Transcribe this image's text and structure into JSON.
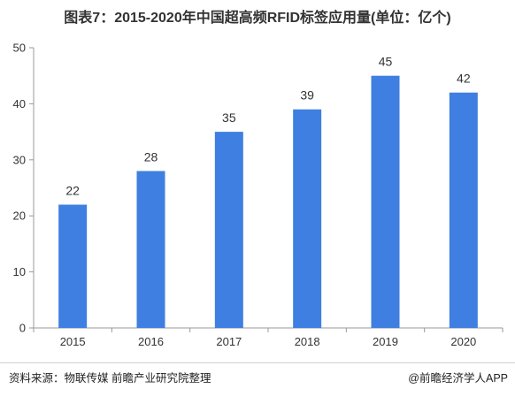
{
  "title": "图表7：2015-2020年中国超高频RFID标签应用量(单位：亿个)",
  "footer": {
    "source": "资料来源：物联传媒 前瞻产业研究院整理",
    "brand": "@前瞻经济学人APP"
  },
  "colors": {
    "bar": "#3f7fe1",
    "axis": "#999999",
    "text": "#333333"
  },
  "chart_data": {
    "type": "bar",
    "categories": [
      "2015",
      "2016",
      "2017",
      "2018",
      "2019",
      "2020"
    ],
    "values": [
      22,
      28,
      35,
      39,
      45,
      42
    ],
    "data_labels": [
      "22",
      "28",
      "35",
      "39",
      "45",
      "42"
    ],
    "yticks": [
      0,
      10,
      20,
      30,
      40,
      50
    ],
    "ylim": [
      0,
      50
    ],
    "xlabel": "",
    "ylabel": "",
    "grid": false,
    "legend": "none"
  }
}
